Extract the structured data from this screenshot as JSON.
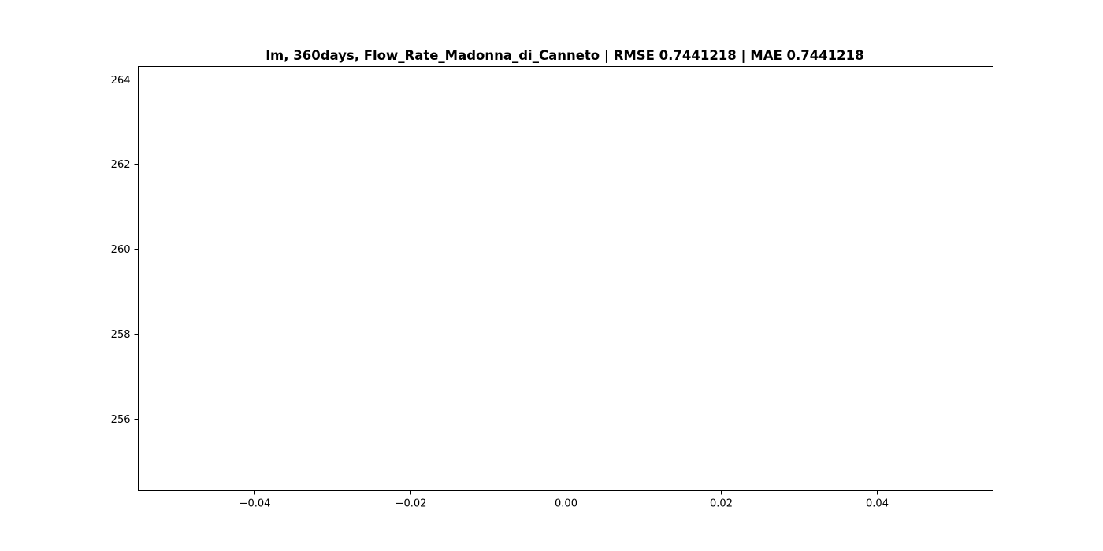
{
  "chart_data": {
    "type": "line",
    "title": "lm, 360days, Flow_Rate_Madonna_di_Canneto | RMSE 0.7441218 | MAE 0.7441218",
    "xlabel": "",
    "ylabel": "",
    "xlim": [
      -0.055,
      0.055
    ],
    "ylim": [
      254.3,
      264.3
    ],
    "x_ticks": [
      -0.04,
      -0.02,
      0.0,
      0.02,
      0.04
    ],
    "x_tick_labels": [
      "−0.04",
      "−0.02",
      "0.00",
      "0.02",
      "0.04"
    ],
    "y_ticks": [
      256,
      258,
      260,
      262,
      264
    ],
    "y_tick_labels": [
      "256",
      "258",
      "260",
      "262",
      "264"
    ],
    "grid": false,
    "legend": "none",
    "series": []
  }
}
